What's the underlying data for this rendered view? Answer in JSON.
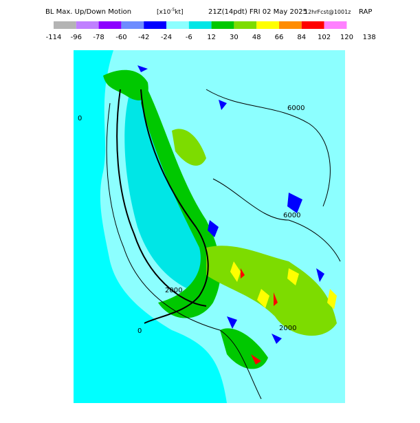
{
  "header": {
    "title": "BL Max. Up/Down Motion",
    "units_pre": "[x10",
    "units_exp": "-5",
    "units_post": "kt]",
    "valid": "21Z(14pdt) FRI 02 May 2025",
    "forecast": "12hrFcst@1001z",
    "model": "RAP"
  },
  "colorbar": {
    "ticks": [
      -114,
      -96,
      -78,
      -60,
      -42,
      -24,
      -6,
      12,
      30,
      48,
      66,
      84,
      102,
      120,
      138
    ],
    "colors": [
      "#b4b4b4",
      "#c080ff",
      "#8c00ff",
      "#6e8cff",
      "#0000ff",
      "#8cffff",
      "#00e6e6",
      "#00c800",
      "#7ddc00",
      "#ffff00",
      "#ff8c00",
      "#ff0000",
      "#ff80ff"
    ]
  },
  "map": {
    "contour_labels": [
      "6000",
      "6000",
      "0",
      "0",
      "2000",
      "2000"
    ]
  }
}
